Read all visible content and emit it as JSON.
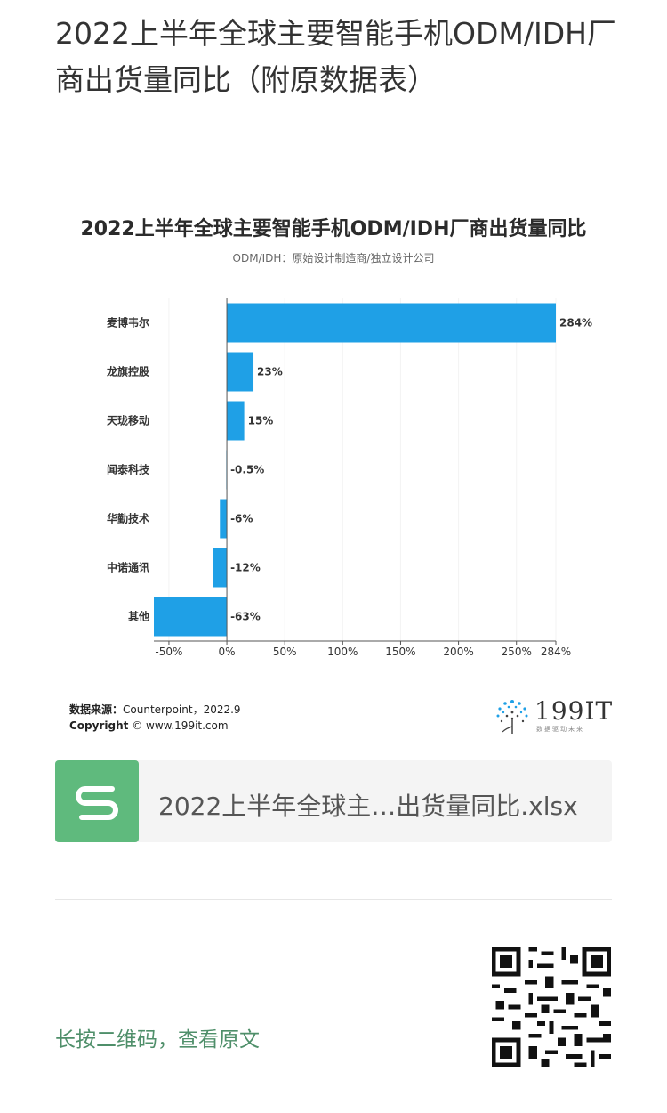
{
  "article": {
    "title": "2022上半年全球主要智能手机ODM/IDH厂商出货量同比（附原数据表）"
  },
  "chart_data": {
    "type": "bar",
    "orientation": "horizontal",
    "title": "2022上半年全球主要智能手机ODM/IDH厂商出货量同比",
    "subtitle": "ODM/IDH：原始设计制造商/独立设计公司",
    "categories": [
      "麦博韦尔",
      "龙旗控股",
      "天珑移动",
      "闻泰科技",
      "华勤技术",
      "中诺通讯",
      "其他"
    ],
    "values": [
      284,
      23,
      15,
      -0.5,
      -6,
      -12,
      -63
    ],
    "value_labels": [
      "284%",
      "23%",
      "15%",
      "-0.5%",
      "-6%",
      "-12%",
      "-63%"
    ],
    "x_ticks": [
      -50,
      0,
      50,
      100,
      150,
      200,
      250,
      284
    ],
    "x_tick_labels": [
      "-50%",
      "0%",
      "50%",
      "100%",
      "150%",
      "200%",
      "250%",
      "284%"
    ],
    "xlim": [
      -63,
      284
    ],
    "bar_color": "#1fa0e6",
    "grid": true
  },
  "source": {
    "label": "数据来源：",
    "text": "Counterpoint，2022.9"
  },
  "copyright": {
    "label": "Copyright",
    "text": "© www.199it.com"
  },
  "brand": {
    "name": "199IT",
    "tagline": "数据驱动未来",
    "accent": "#1fa0e6"
  },
  "attachment": {
    "file_name": "2022上半年全球主…出货量同比.xlsx",
    "icon_color": "#5fba7d"
  },
  "footer": {
    "qr_hint": "长按二维码，查看原文"
  }
}
